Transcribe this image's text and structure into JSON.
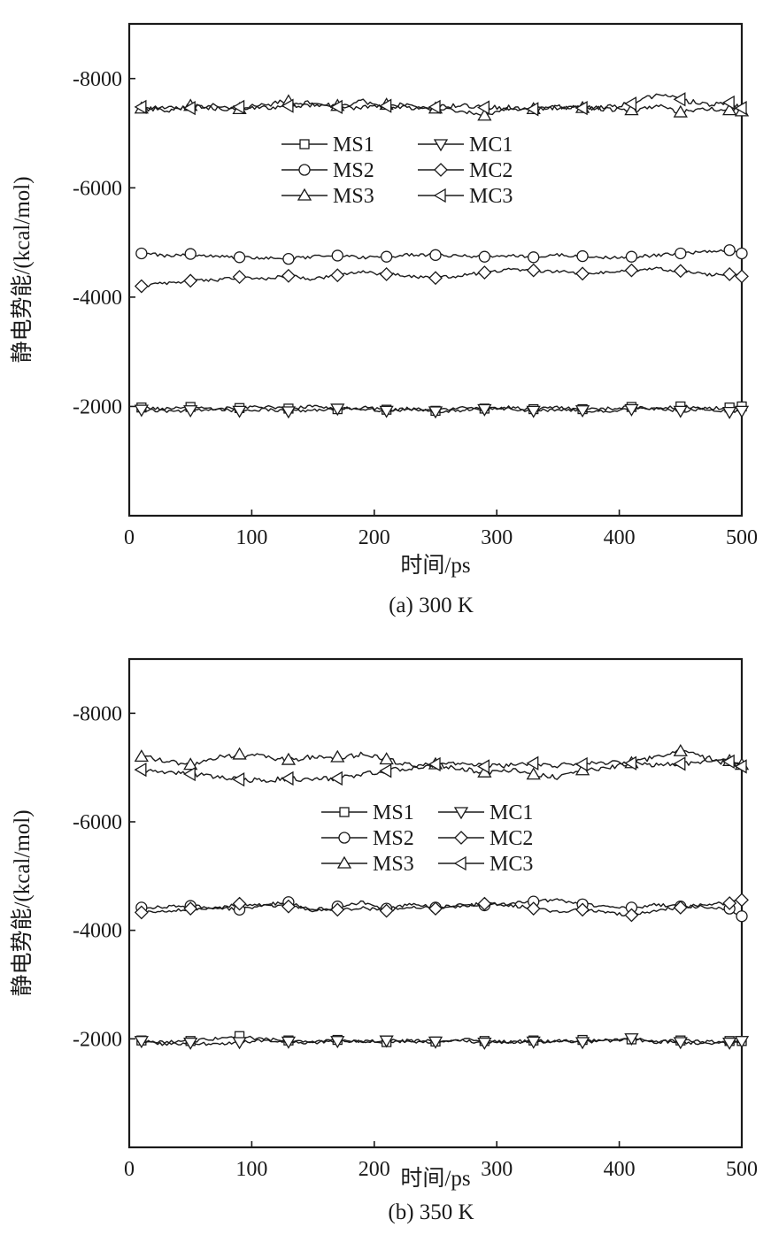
{
  "chart_data": [
    {
      "type": "line",
      "caption": "(a) 300 K",
      "xlabel": "时间/ps",
      "ylabel": "静电势能/(kcal/mol)",
      "xlim": [
        0,
        500
      ],
      "ylim": [
        0,
        -9000
      ],
      "x_ticks": [
        0,
        100,
        200,
        300,
        400,
        500
      ],
      "x_tick_labels": [
        "0",
        "100",
        "200",
        "300",
        "400",
        "500"
      ],
      "y_ticks": [
        -2000,
        -4000,
        -6000,
        -8000
      ],
      "y_tick_labels": [
        "-2000",
        "-4000",
        "-6000",
        "-8000"
      ],
      "grid": false,
      "legend_position": "upper-center",
      "x": [
        10,
        30,
        50,
        70,
        90,
        110,
        130,
        150,
        170,
        190,
        210,
        230,
        250,
        270,
        290,
        310,
        330,
        350,
        370,
        390,
        410,
        430,
        450,
        470,
        490,
        500
      ],
      "series": [
        {
          "name": "MS1",
          "marker": "square",
          "values": [
            -1980,
            -1950,
            -1990,
            -1960,
            -1970,
            -1990,
            -1960,
            -2010,
            -1950,
            -1980,
            -1940,
            -1960,
            -1920,
            -1970,
            -1960,
            -1990,
            -1950,
            -1980,
            -1950,
            -1960,
            -1990,
            -1950,
            -2000,
            -1960,
            -1980,
            -2000
          ]
        },
        {
          "name": "MS2",
          "marker": "circle",
          "values": [
            -4800,
            -4760,
            -4790,
            -4740,
            -4730,
            -4720,
            -4700,
            -4740,
            -4760,
            -4720,
            -4740,
            -4780,
            -4770,
            -4760,
            -4740,
            -4760,
            -4730,
            -4770,
            -4750,
            -4720,
            -4740,
            -4760,
            -4800,
            -4830,
            -4860,
            -4800
          ]
        },
        {
          "name": "MS3",
          "marker": "triangle-up",
          "values": [
            -7450,
            -7420,
            -7500,
            -7460,
            -7440,
            -7520,
            -7580,
            -7540,
            -7500,
            -7580,
            -7520,
            -7500,
            -7450,
            -7410,
            -7320,
            -7460,
            -7440,
            -7480,
            -7460,
            -7440,
            -7420,
            -7500,
            -7380,
            -7440,
            -7420,
            -7400
          ]
        },
        {
          "name": "MC1",
          "marker": "triangle-down",
          "values": [
            -1940,
            -1910,
            -1930,
            -1950,
            -1920,
            -1940,
            -1910,
            -1930,
            -1960,
            -1950,
            -1920,
            -1940,
            -1910,
            -1930,
            -1950,
            -1960,
            -1920,
            -1940,
            -1930,
            -1910,
            -1950,
            -1960,
            -1920,
            -1940,
            -1900,
            -1920
          ]
        },
        {
          "name": "MC2",
          "marker": "diamond",
          "values": [
            -4200,
            -4260,
            -4300,
            -4310,
            -4370,
            -4330,
            -4390,
            -4330,
            -4400,
            -4460,
            -4420,
            -4380,
            -4350,
            -4390,
            -4450,
            -4510,
            -4490,
            -4470,
            -4430,
            -4450,
            -4490,
            -4520,
            -4480,
            -4410,
            -4420,
            -4380
          ]
        },
        {
          "name": "MC3",
          "marker": "triangle-left",
          "values": [
            -7480,
            -7470,
            -7460,
            -7500,
            -7480,
            -7460,
            -7500,
            -7520,
            -7480,
            -7460,
            -7500,
            -7470,
            -7480,
            -7500,
            -7470,
            -7470,
            -7440,
            -7470,
            -7460,
            -7480,
            -7540,
            -7700,
            -7620,
            -7520,
            -7560,
            -7460
          ]
        }
      ]
    },
    {
      "type": "line",
      "caption": "(b) 350 K",
      "xlabel": "时间/ps",
      "ylabel": "静电势能/(kcal/mol)",
      "xlim": [
        0,
        500
      ],
      "ylim": [
        0,
        -9000
      ],
      "x_ticks": [
        0,
        100,
        200,
        300,
        400,
        500
      ],
      "x_tick_labels": [
        "0",
        "100",
        "200",
        "300",
        "400",
        "500"
      ],
      "y_ticks": [
        -2000,
        -4000,
        -6000,
        -8000
      ],
      "y_tick_labels": [
        "-2000",
        "-4000",
        "-6000",
        "-8000"
      ],
      "grid": false,
      "legend_position": "center",
      "x": [
        10,
        30,
        50,
        70,
        90,
        110,
        130,
        150,
        170,
        190,
        210,
        230,
        250,
        270,
        290,
        310,
        330,
        350,
        370,
        390,
        410,
        430,
        450,
        470,
        490,
        500
      ],
      "series": [
        {
          "name": "MS1",
          "marker": "square",
          "values": [
            -1970,
            -1940,
            -1960,
            -2000,
            -2050,
            -1990,
            -1970,
            -1950,
            -1980,
            -1960,
            -1940,
            -1970,
            -1950,
            -1990,
            -1960,
            -1940,
            -1970,
            -1950,
            -1980,
            -1960,
            -1990,
            -1940,
            -1970,
            -1950,
            -1960,
            -1960
          ]
        },
        {
          "name": "MS2",
          "marker": "circle",
          "values": [
            -4420,
            -4430,
            -4450,
            -4420,
            -4380,
            -4470,
            -4520,
            -4340,
            -4440,
            -4520,
            -4400,
            -4480,
            -4420,
            -4460,
            -4460,
            -4490,
            -4530,
            -4560,
            -4480,
            -4440,
            -4420,
            -4470,
            -4440,
            -4430,
            -4400,
            -4260
          ]
        },
        {
          "name": "MS3",
          "marker": "triangle-up",
          "values": [
            -7200,
            -7120,
            -7050,
            -7180,
            -7240,
            -7200,
            -7140,
            -7200,
            -7190,
            -7240,
            -7150,
            -7040,
            -7060,
            -6980,
            -6910,
            -6960,
            -6870,
            -6820,
            -6950,
            -7000,
            -7080,
            -7200,
            -7300,
            -7180,
            -7120,
            -7050
          ]
        },
        {
          "name": "MC1",
          "marker": "triangle-down",
          "values": [
            -1960,
            -1900,
            -1930,
            -1890,
            -1940,
            -1970,
            -1950,
            -1930,
            -1960,
            -1950,
            -1970,
            -1940,
            -1950,
            -1970,
            -1930,
            -1940,
            -1950,
            -1960,
            -1940,
            -1980,
            -2010,
            -1960,
            -1940,
            -1910,
            -1930,
            -1960
          ]
        },
        {
          "name": "MC2",
          "marker": "diamond",
          "values": [
            -4330,
            -4360,
            -4400,
            -4390,
            -4490,
            -4470,
            -4440,
            -4400,
            -4380,
            -4410,
            -4360,
            -4430,
            -4400,
            -4450,
            -4490,
            -4470,
            -4400,
            -4340,
            -4380,
            -4330,
            -4280,
            -4370,
            -4420,
            -4480,
            -4500,
            -4560
          ]
        },
        {
          "name": "MC3",
          "marker": "triangle-left",
          "values": [
            -6960,
            -6910,
            -6880,
            -6840,
            -6780,
            -6760,
            -6800,
            -6780,
            -6800,
            -6870,
            -6940,
            -7000,
            -7060,
            -7080,
            -7020,
            -7040,
            -7080,
            -7040,
            -7060,
            -7090,
            -7080,
            -7050,
            -7070,
            -7100,
            -7110,
            -7020
          ]
        }
      ]
    }
  ]
}
